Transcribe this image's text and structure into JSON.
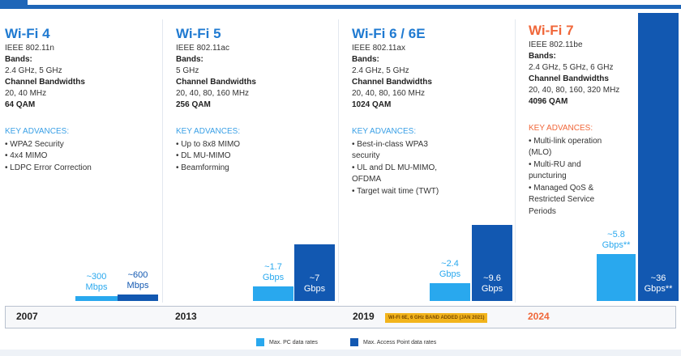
{
  "generations": [
    {
      "name": "Wi-Fi 4",
      "standard": "IEEE 802.11n",
      "bands_label": "Bands:",
      "bands": "2.4 GHz, 5 GHz",
      "bw_label": "Channel Bandwidths",
      "bandwidths": "20, 40 MHz",
      "qam": "64 QAM",
      "advances_label": "KEY ADVANCES:",
      "advances": [
        "• WPA2 Security",
        "• 4x4 MIMO",
        "• LDPC Error Correction"
      ],
      "year": "2007"
    },
    {
      "name": "Wi-Fi 5",
      "standard": "IEEE 802.11ac",
      "bands_label": "Bands:",
      "bands": "5 GHz",
      "bw_label": "Channel Bandwidths",
      "bandwidths": "20, 40, 80, 160 MHz",
      "qam": "256 QAM",
      "advances_label": "KEY ADVANCES:",
      "advances": [
        "• Up to 8x8 MIMO",
        "• DL MU-MIMO",
        "• Beamforming"
      ],
      "year": "2013"
    },
    {
      "name": "Wi-Fi 6 / 6E",
      "standard": "IEEE 802.11ax",
      "bands_label": "Bands:",
      "bands": "2.4 GHz, 5 GHz",
      "bw_label": "Channel Bandwidths",
      "bandwidths": "20, 40, 80, 160 MHz",
      "qam": "1024 QAM",
      "advances_label": "KEY ADVANCES:",
      "advances": [
        "• Best-in-class WPA3",
        "  security",
        "• UL and DL MU-MIMO,",
        "  OFDMA",
        "• Target wait time (TWT)"
      ],
      "year": "2019",
      "year_tag": "WI-FI 6E, 6 GHz BAND ADDED (JAN 2021)"
    },
    {
      "name": "Wi-Fi 7",
      "standard": "IEEE 802.11be",
      "bands_label": "Bands:",
      "bands": "2.4 GHz, 5 GHz, 6 GHz",
      "bw_label": "Channel Bandwidths",
      "bandwidths": "20, 40, 80, 160, 320 MHz",
      "qam": "4096 QAM",
      "advances_label": "KEY ADVANCES:",
      "advances": [
        "• Multi-link operation",
        "  (MLO)",
        "• Multi-RU and",
        "  puncturing",
        "• Managed QoS &",
        "  Restricted Service",
        "  Periods"
      ],
      "year": "2024"
    }
  ],
  "chart_data": {
    "type": "bar",
    "categories": [
      "Wi-Fi 4",
      "Wi-Fi 5",
      "Wi-Fi 6 / 6E",
      "Wi-Fi 7"
    ],
    "series": [
      {
        "name": "Max. PC data rates",
        "values": [
          0.3,
          1.7,
          2.4,
          5.8
        ],
        "labels": [
          [
            "~300",
            "Mbps"
          ],
          [
            "~1.7",
            "Gbps"
          ],
          [
            "~2.4",
            "Gbps"
          ],
          [
            "~5.8",
            "Gbps**"
          ]
        ],
        "color": "#29a8ee"
      },
      {
        "name": "Max. Access Point data rates",
        "values": [
          0.6,
          7,
          9.6,
          36
        ],
        "labels": [
          [
            "~600",
            "Mbps"
          ],
          [
            "~7",
            "Gbps"
          ],
          [
            "~9.6",
            "Gbps"
          ],
          [
            "~36",
            "Gbps**"
          ]
        ],
        "color": "#1258b1"
      }
    ]
  },
  "legend": {
    "pc": "Max. PC data rates",
    "ap": "Max. Access Point data rates"
  }
}
